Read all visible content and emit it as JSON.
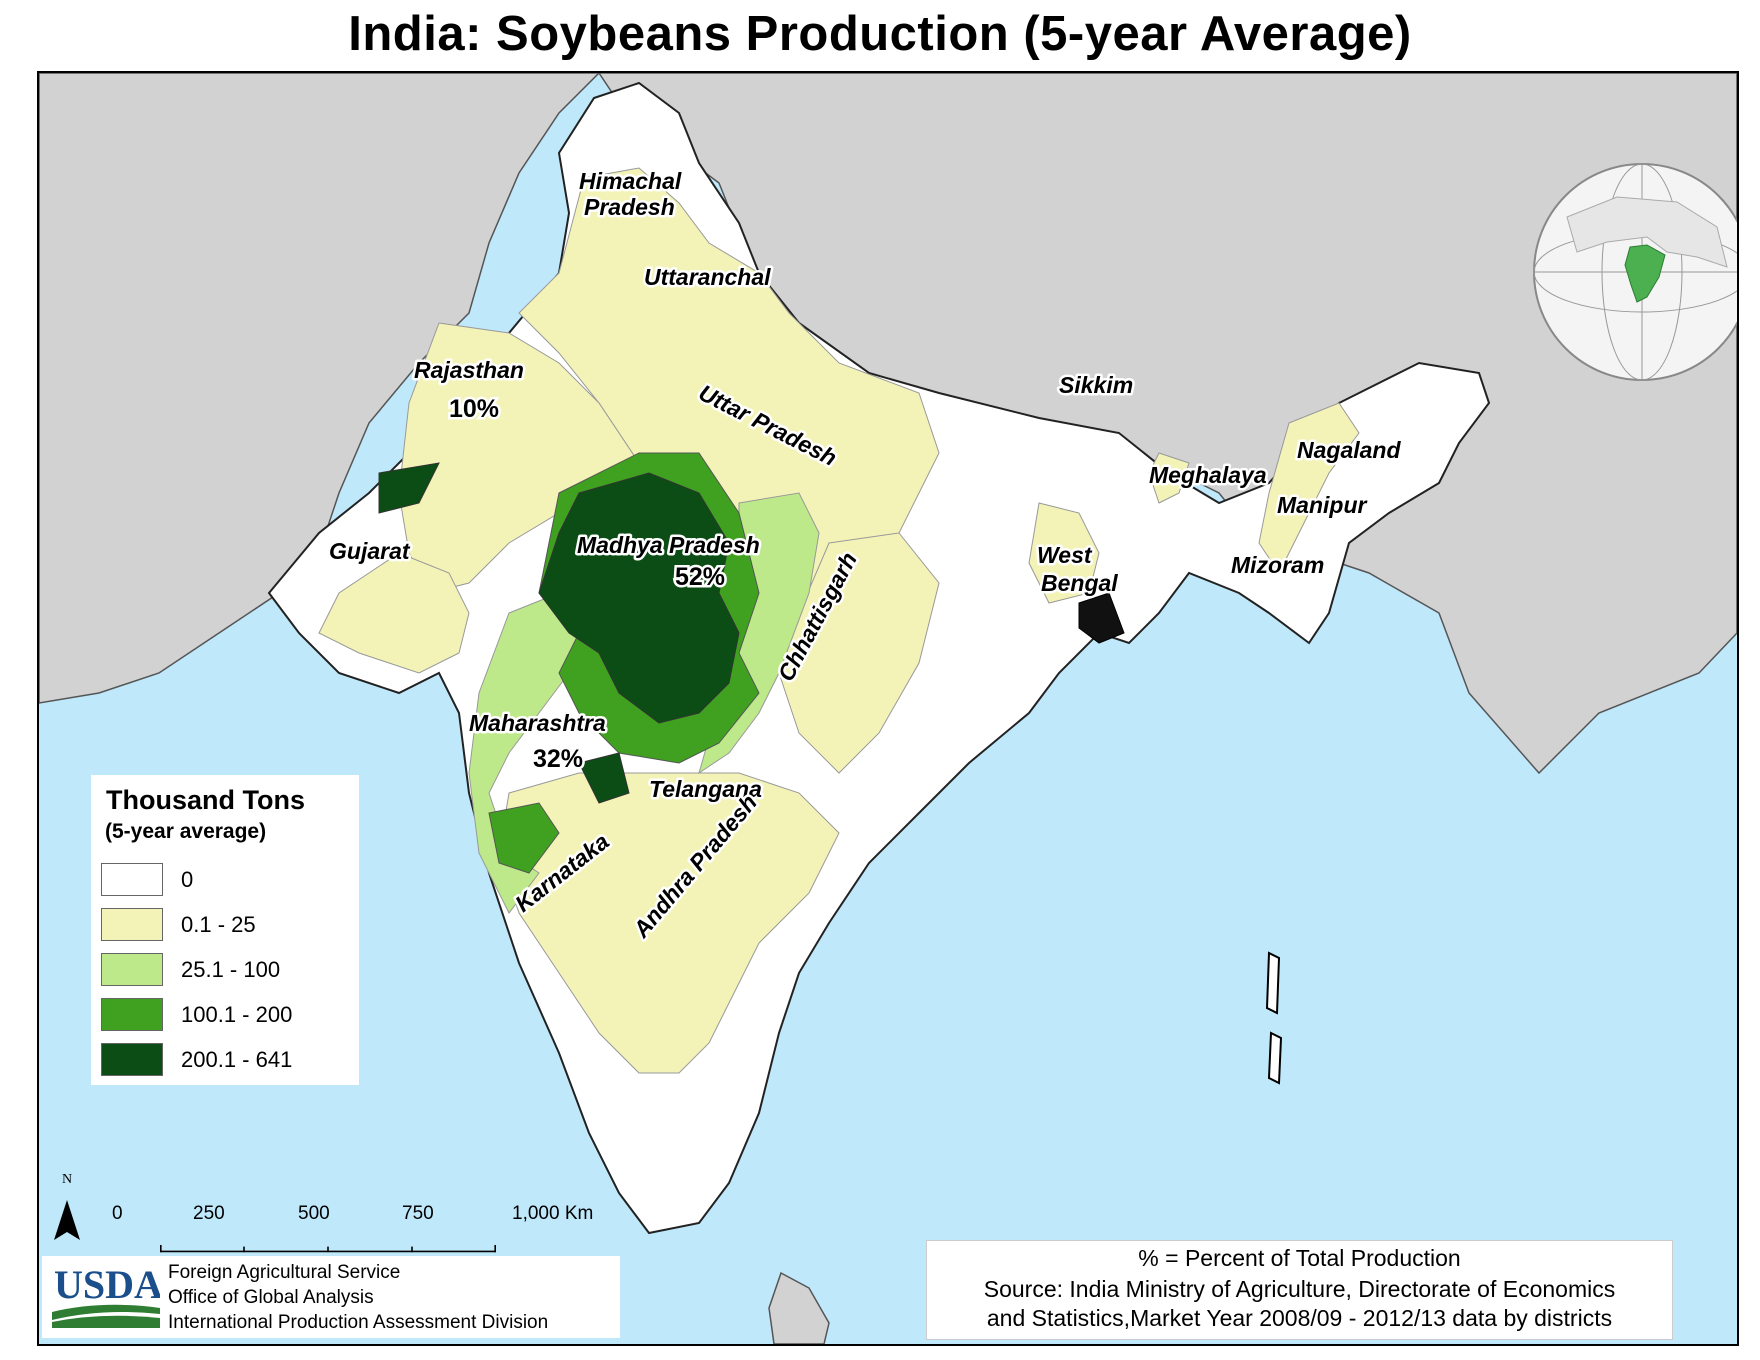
{
  "title": "India: Soybeans Production (5-year Average)",
  "regions": [
    {
      "name": "Himachal",
      "key": "himachal1"
    },
    {
      "name": "Pradesh",
      "key": "himachal2"
    },
    {
      "name": "Uttaranchal",
      "key": "uttaranchal"
    },
    {
      "name": "Rajasthan",
      "key": "rajasthan"
    },
    {
      "name": "Uttar Pradesh",
      "key": "uttar"
    },
    {
      "name": "Sikkim",
      "key": "sikkim"
    },
    {
      "name": "Nagaland",
      "key": "nagaland"
    },
    {
      "name": "Meghalaya",
      "key": "meghalaya"
    },
    {
      "name": "Manipur",
      "key": "manipur"
    },
    {
      "name": "Gujarat",
      "key": "gujarat"
    },
    {
      "name": "Madhya Pradesh",
      "key": "mp"
    },
    {
      "name": "West",
      "key": "wb1"
    },
    {
      "name": "Bengal",
      "key": "wb2"
    },
    {
      "name": "Mizoram",
      "key": "mizoram"
    },
    {
      "name": "Chhattisgarh",
      "key": "chhattisgarh"
    },
    {
      "name": "Maharashtra",
      "key": "maharashtra"
    },
    {
      "name": "Telangana",
      "key": "telangana"
    },
    {
      "name": "Karnataka",
      "key": "karnataka"
    },
    {
      "name": "Andhra Pradesh",
      "key": "andhra"
    }
  ],
  "percentages": {
    "rajasthan": "10%",
    "madhya_pradesh": "52%",
    "maharashtra": "32%"
  },
  "legend": {
    "title": "Thousand Tons",
    "subtitle": "(5-year average)",
    "classes": [
      {
        "label": "0",
        "color": "#ffffff"
      },
      {
        "label": "0.1 - 25",
        "color": "#f3f3b8"
      },
      {
        "label": "25.1 - 100",
        "color": "#bde98a"
      },
      {
        "label": "100.1 - 200",
        "color": "#3fa11f"
      },
      {
        "label": "200.1 - 641",
        "color": "#0b4d14"
      }
    ]
  },
  "scale": {
    "north": "N",
    "ticks": [
      "0",
      "250",
      "500",
      "750",
      "1,000 Km"
    ]
  },
  "usda": {
    "logo_text": "USDA",
    "lines": [
      "Foreign Agricultural Service",
      "Office of Global Analysis",
      "International Production Assessment Division"
    ]
  },
  "source": {
    "lines": [
      "% = Percent of Total Production",
      "Source: India Ministry of Agriculture, Directorate of Economics",
      "and Statistics,Market Year 2008/09 - 2012/13 data by districts"
    ]
  },
  "colors": {
    "sea": "#bfe8fb",
    "neighbor": "#d2d2d2",
    "zero": "#ffffff",
    "low": "#f3f3b8",
    "mid": "#bde98a",
    "high": "#3fa11f",
    "top": "#0b4d14",
    "usda_blue": "#1a4f8b",
    "usda_green": "#2e7d32"
  }
}
